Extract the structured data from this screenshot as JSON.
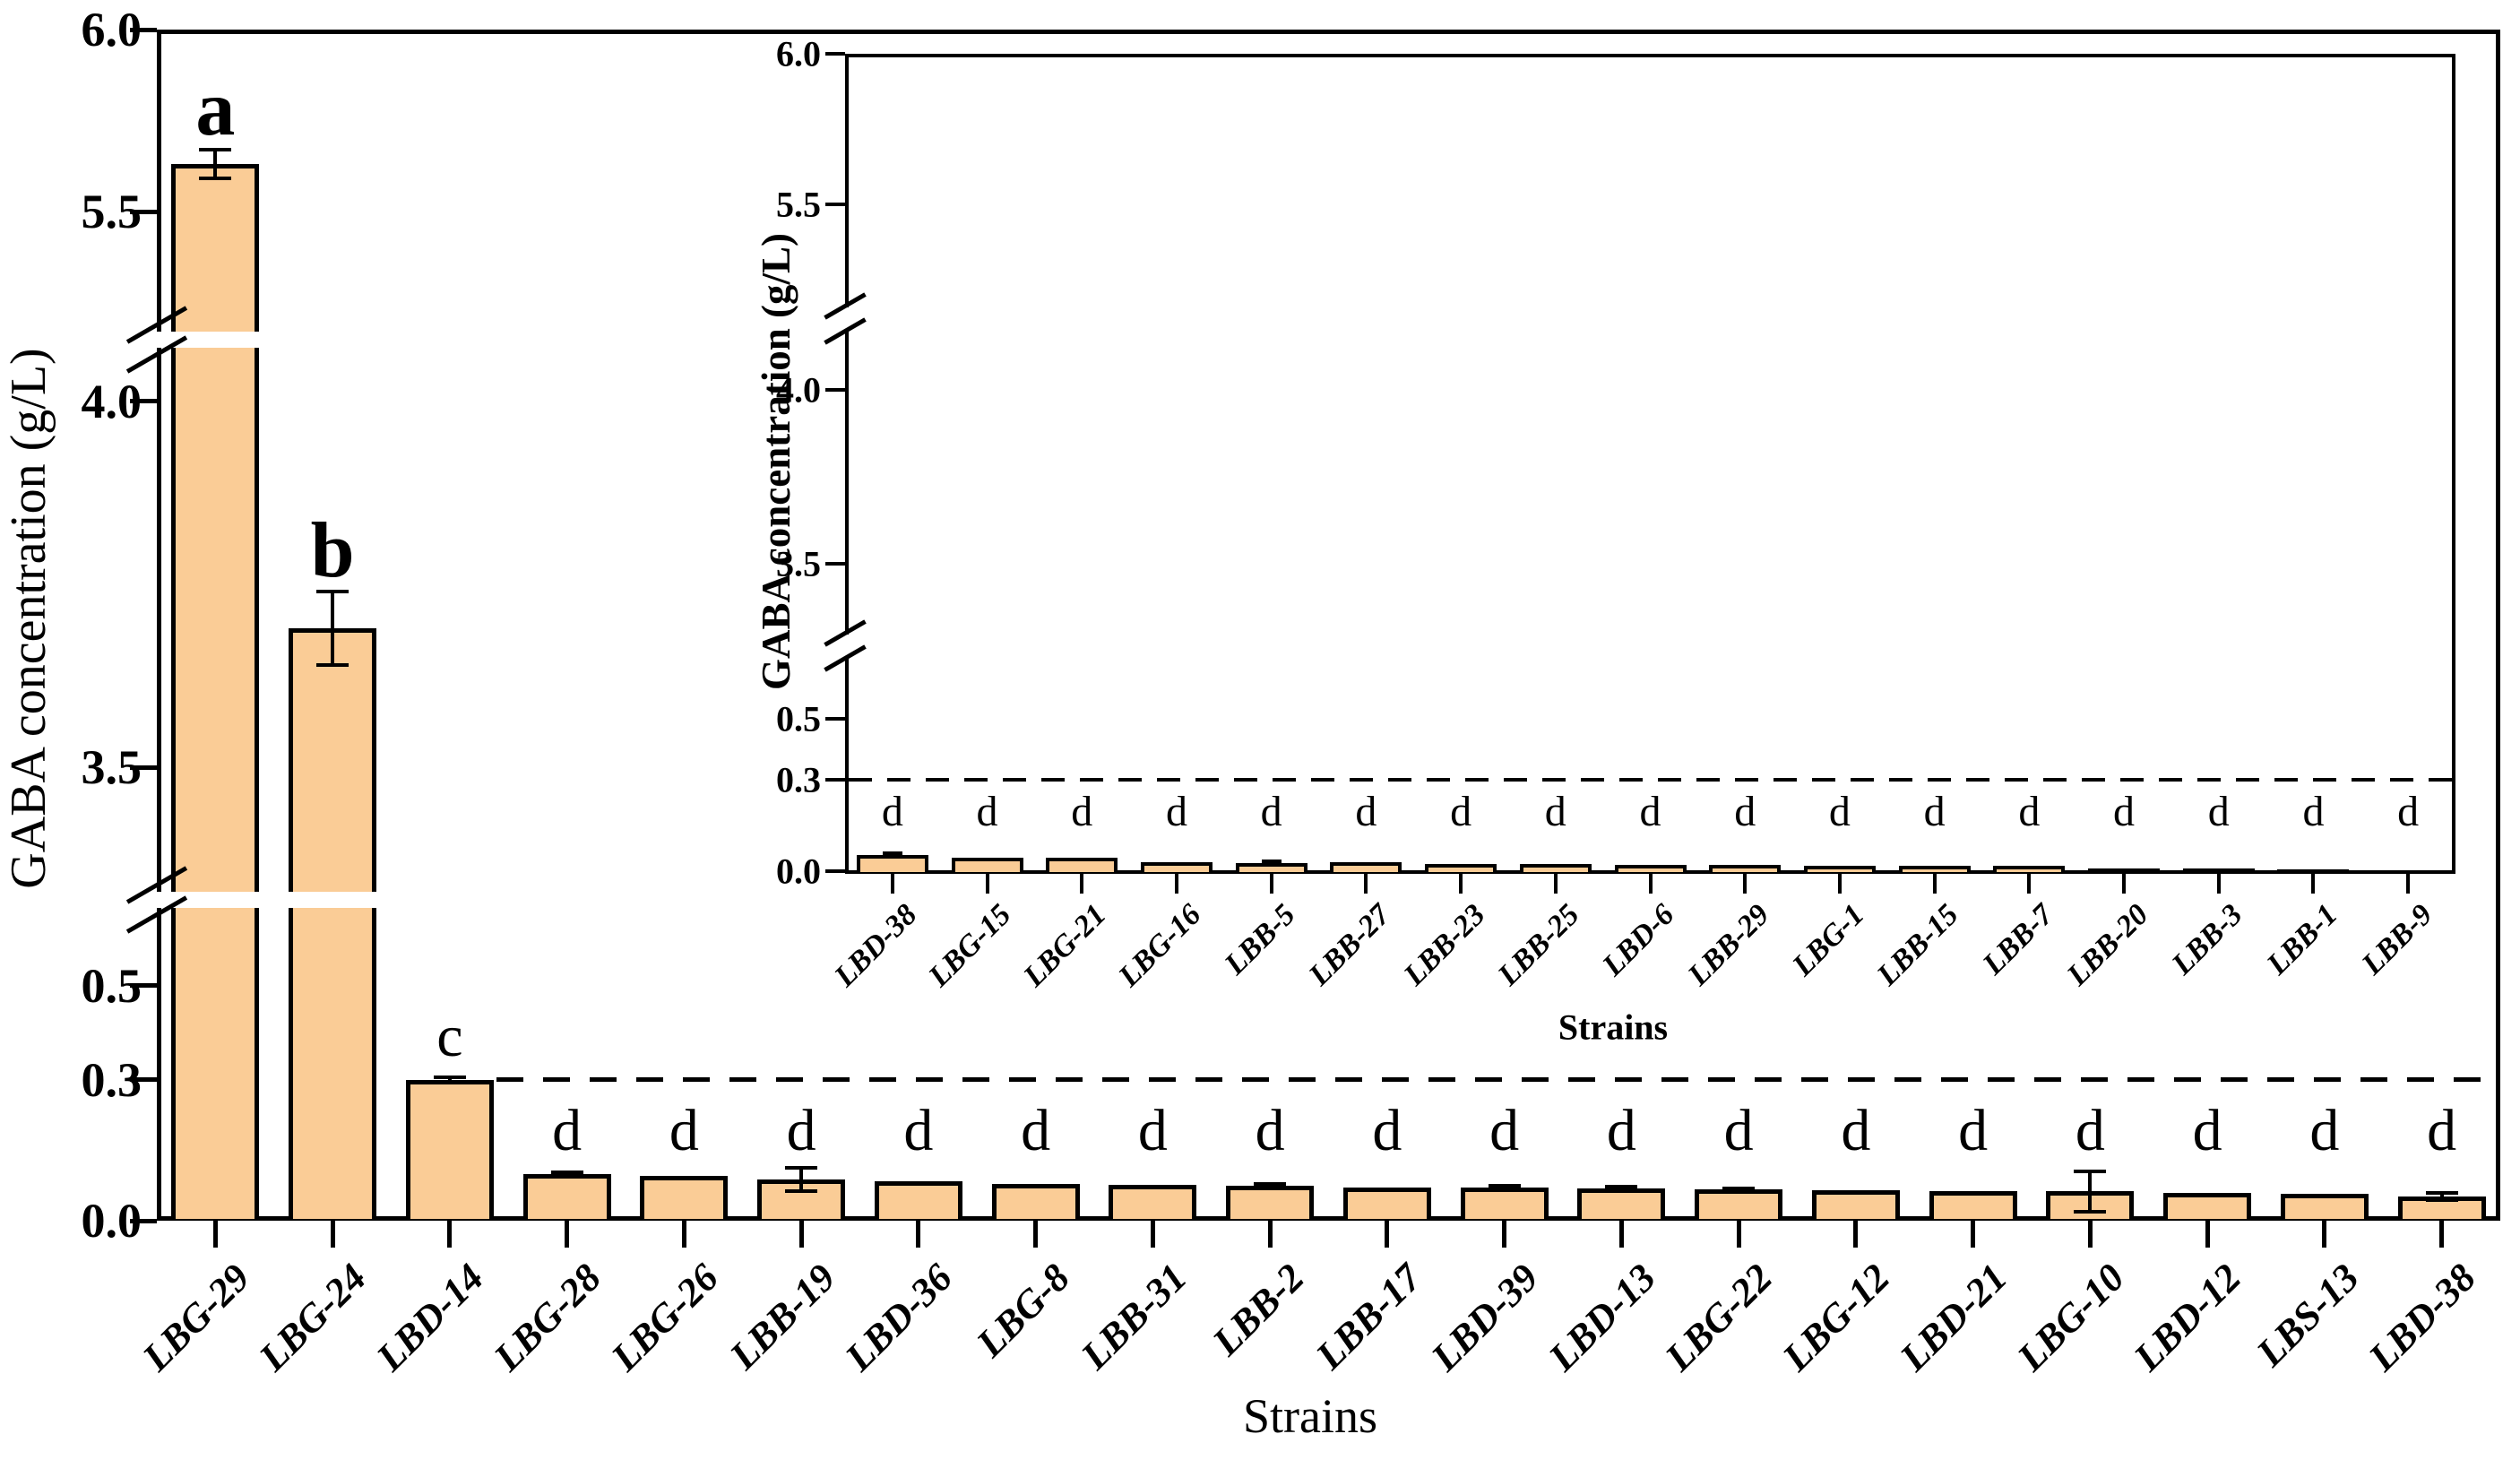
{
  "figure": {
    "background": "#ffffff",
    "bar_fill": "#FACC96",
    "bar_border": "#000000",
    "text_color": "#000000"
  },
  "chart_data": [
    {
      "id": "main",
      "type": "bar",
      "xlabel": "Strains",
      "ylabel": "GABA concentration (g/L)",
      "ylim": [
        0.0,
        6.0
      ],
      "axis_break_segments": [
        [
          0.0,
          0.66
        ],
        [
          3.33,
          4.07
        ],
        [
          5.17,
          6.0
        ]
      ],
      "y_ticks": [
        [
          0.0,
          0.3,
          0.5
        ],
        [
          3.5,
          4.0
        ],
        [
          5.5,
          6.0
        ]
      ],
      "dashed_reference_line": 0.3,
      "grid": "off",
      "categories": [
        "LBG-29",
        "LBG-24",
        "LBD-14",
        "LBG-28",
        "LBG-26",
        "LBB-19",
        "LBD-36",
        "LBG-8",
        "LBB-31",
        "LBB-2",
        "LBB-17",
        "LBD-39",
        "LBD-13",
        "LBG-22",
        "LBG-12",
        "LBD-21",
        "LBG-10",
        "LBD-12",
        "LBS-13",
        "LBD-38"
      ],
      "values": [
        5.63,
        3.69,
        0.3,
        0.099,
        0.095,
        0.088,
        0.083,
        0.078,
        0.076,
        0.074,
        0.071,
        0.07,
        0.068,
        0.066,
        0.064,
        0.063,
        0.062,
        0.059,
        0.057,
        0.052
      ],
      "errors": [
        0.04,
        0.05,
        0.005,
        0.004,
        0,
        0.025,
        0,
        0,
        0,
        0.004,
        0,
        0.004,
        0.005,
        0.003,
        0,
        0,
        0.042,
        0,
        0,
        0.008
      ],
      "sig_letters": [
        "a",
        "b",
        "c",
        "d",
        "d",
        "d",
        "d",
        "d",
        "d",
        "d",
        "d",
        "d",
        "d",
        "d",
        "d",
        "d",
        "d",
        "d",
        "d",
        "d"
      ]
    },
    {
      "id": "inset",
      "type": "bar",
      "xlabel": "Strains",
      "ylabel": "GABA concentration (g/L)",
      "ylim": [
        0.0,
        6.0
      ],
      "axis_break_segments": [
        [
          0.0,
          0.71
        ],
        [
          3.28,
          4.18
        ],
        [
          5.15,
          6.0
        ]
      ],
      "y_ticks": [
        [
          0.0,
          0.3,
          0.5
        ],
        [
          3.5,
          4.0
        ],
        [
          5.5,
          6.0
        ]
      ],
      "dashed_reference_line": 0.3,
      "grid": "off",
      "categories": [
        "LBD-38",
        "LBG-15",
        "LBG-21",
        "LBG-16",
        "LBB-5",
        "LBB-27",
        "LBB-23",
        "LBB-25",
        "LBD-6",
        "LBB-29",
        "LBG-1",
        "LBB-15",
        "LBB-7",
        "LBB-20",
        "LBB-3",
        "LBB-1",
        "LBB-9"
      ],
      "values": [
        0.054,
        0.044,
        0.043,
        0.03,
        0.027,
        0.029,
        0.024,
        0.023,
        0.022,
        0.02,
        0.019,
        0.018,
        0.017,
        0.01,
        0.008,
        0.006,
        0.004
      ],
      "errors": [
        0.005,
        0,
        0,
        0,
        0.004,
        0,
        0,
        0,
        0,
        0,
        0,
        0,
        0,
        0,
        0,
        0,
        0
      ],
      "sig_letters": [
        "d",
        "d",
        "d",
        "d",
        "d",
        "d",
        "d",
        "d",
        "d",
        "d",
        "d",
        "d",
        "d",
        "d",
        "d",
        "d",
        "d"
      ]
    }
  ]
}
